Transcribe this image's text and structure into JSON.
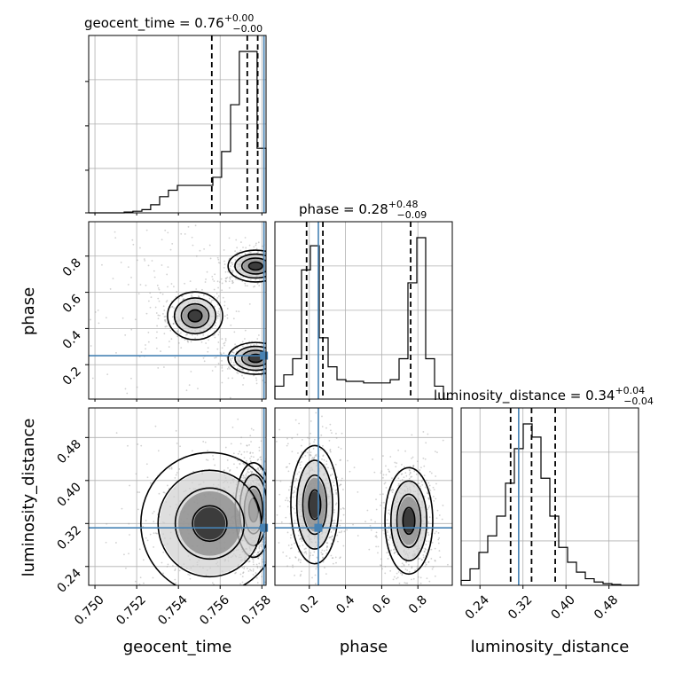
{
  "chart_data": {
    "type": "corner",
    "parameters": [
      "geocent_time",
      "phase",
      "luminosity_distance"
    ],
    "titles": {
      "geocent_time": {
        "name": "geocent_time",
        "median": "0.76",
        "plus": "+0.00",
        "minus": "−0.00"
      },
      "phase": {
        "name": "phase",
        "median": "0.28",
        "plus": "+0.48",
        "minus": "−0.09"
      },
      "luminosity_distance": {
        "name": "luminosity_distance",
        "median": "0.34",
        "plus": "+0.04",
        "minus": "−0.04"
      }
    },
    "axis_labels": {
      "geocent_time": "geocent_time",
      "phase": "phase",
      "luminosity_distance": "luminosity_distance"
    },
    "ranges": {
      "geocent_time": [
        0.7497,
        0.7582
      ],
      "phase": [
        0.01,
        0.99
      ],
      "luminosity_distance": [
        0.205,
        0.535
      ]
    },
    "ticks": {
      "geocent_time": [
        "0.750",
        "0.752",
        "0.754",
        "0.756",
        "0.758"
      ],
      "phase": [
        "0.2",
        "0.4",
        "0.6",
        "0.8"
      ],
      "luminosity_distance": [
        "0.24",
        "0.32",
        "0.40",
        "0.48"
      ]
    },
    "y_ticks": {
      "phase": [
        "0.2",
        "0.4",
        "0.6",
        "0.8"
      ],
      "luminosity_distance": [
        "0.24",
        "0.32",
        "0.40",
        "0.48"
      ]
    },
    "truths": {
      "geocent_time": 0.7581,
      "phase": 0.25,
      "luminosity_distance": 0.312
    },
    "quantiles": {
      "geocent_time": [
        0.7556,
        0.7573,
        0.7578
      ],
      "phase": [
        0.185,
        0.275,
        0.76
      ],
      "luminosity_distance": [
        0.297,
        0.336,
        0.38
      ]
    },
    "histograms": {
      "geocent_time": {
        "edges": [
          0.7497,
          0.75013,
          0.75055,
          0.75097,
          0.7514,
          0.75182,
          0.75225,
          0.75267,
          0.7531,
          0.75352,
          0.75395,
          0.75437,
          0.7548,
          0.75522,
          0.75565,
          0.75607,
          0.7565,
          0.75692,
          0.75735,
          0.75777,
          0.7582
        ],
        "counts": [
          0,
          0,
          0,
          0,
          0.5,
          1,
          2,
          5,
          10,
          14,
          17,
          17,
          17,
          17,
          22,
          38,
          67,
          100,
          100,
          40
        ]
      },
      "phase": {
        "edges": [
          0.01,
          0.059,
          0.108,
          0.157,
          0.206,
          0.255,
          0.304,
          0.353,
          0.402,
          0.451,
          0.5,
          0.549,
          0.598,
          0.647,
          0.696,
          0.745,
          0.794,
          0.843,
          0.892,
          0.941,
          0.99
        ],
        "counts": [
          8,
          15,
          25,
          80,
          95,
          38,
          20,
          12,
          11,
          11,
          10,
          10,
          10,
          12,
          25,
          72,
          100,
          25,
          8,
          0
        ]
      },
      "luminosity_distance": {
        "edges": [
          0.205,
          0.2215,
          0.238,
          0.2545,
          0.271,
          0.2875,
          0.304,
          0.3205,
          0.337,
          0.3535,
          0.37,
          0.3865,
          0.403,
          0.4195,
          0.436,
          0.4525,
          0.469,
          0.4855,
          0.502,
          0.5185,
          0.535
        ],
        "counts": [
          3,
          10,
          20,
          30,
          42,
          62,
          83,
          98,
          90,
          65,
          42,
          23,
          14,
          8,
          4,
          2,
          1,
          0.5,
          0,
          0
        ]
      }
    },
    "blobs": {
      "phase_vs_geocent_time": [
        {
          "cx": 0.7577,
          "cy": 0.745,
          "sx": 0.0006,
          "sy": 0.04,
          "w": 1.0
        },
        {
          "cx": 0.7577,
          "cy": 0.235,
          "sx": 0.0006,
          "sy": 0.04,
          "w": 1.0
        },
        {
          "cx": 0.7548,
          "cy": 0.47,
          "sx": 0.0006,
          "sy": 0.06,
          "w": 0.6
        },
        {
          "cx": 0.753,
          "cy": 0.5,
          "sx": 0.0012,
          "sy": 0.3,
          "w": 0.3
        }
      ],
      "luminosity_distance_vs_geocent_time": [
        {
          "cx": 0.7576,
          "cy": 0.345,
          "sx": 0.0004,
          "sy": 0.04,
          "w": 1.0
        },
        {
          "cx": 0.7555,
          "cy": 0.32,
          "sx": 0.0015,
          "sy": 0.06,
          "w": 0.5
        }
      ],
      "luminosity_distance_vs_phase": [
        {
          "cx": 0.23,
          "cy": 0.355,
          "sx": 0.06,
          "sy": 0.05,
          "w": 1.0
        },
        {
          "cx": 0.75,
          "cy": 0.325,
          "sx": 0.06,
          "sy": 0.045,
          "w": 1.0
        }
      ]
    }
  }
}
